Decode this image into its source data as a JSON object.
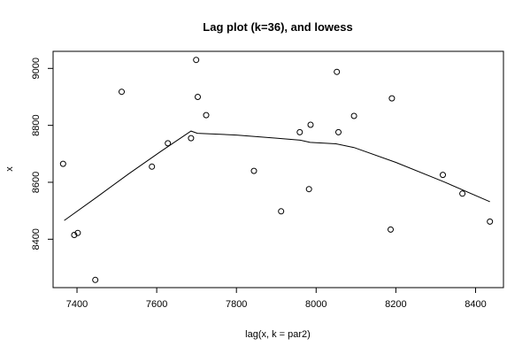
{
  "chart_data": {
    "type": "scatter",
    "title": "Lag plot (k=36), and lowess",
    "xlabel": "lag(x, k = par2)",
    "ylabel": "x",
    "xlim": [
      7340,
      8470
    ],
    "ylim": [
      8230,
      9060
    ],
    "x_ticks": [
      "7400",
      "7600",
      "7800",
      "8000",
      "8200",
      "8400"
    ],
    "y_ticks": [
      "8400",
      "8600",
      "8800",
      "9000"
    ],
    "grid": false,
    "points": [
      {
        "x": 7365,
        "y": 8665
      },
      {
        "x": 7393,
        "y": 8415
      },
      {
        "x": 7402,
        "y": 8422
      },
      {
        "x": 7446,
        "y": 8257
      },
      {
        "x": 7512,
        "y": 8918
      },
      {
        "x": 7588,
        "y": 8655
      },
      {
        "x": 7628,
        "y": 8737
      },
      {
        "x": 7686,
        "y": 8755
      },
      {
        "x": 7699,
        "y": 9030
      },
      {
        "x": 7703,
        "y": 8900
      },
      {
        "x": 7724,
        "y": 8836
      },
      {
        "x": 7844,
        "y": 8640
      },
      {
        "x": 7912,
        "y": 8498
      },
      {
        "x": 7959,
        "y": 8776
      },
      {
        "x": 7982,
        "y": 8576
      },
      {
        "x": 7986,
        "y": 8802
      },
      {
        "x": 8052,
        "y": 8988
      },
      {
        "x": 8056,
        "y": 8776
      },
      {
        "x": 8095,
        "y": 8833
      },
      {
        "x": 8187,
        "y": 8434
      },
      {
        "x": 8190,
        "y": 8895
      },
      {
        "x": 8318,
        "y": 8626
      },
      {
        "x": 8367,
        "y": 8560
      },
      {
        "x": 8436,
        "y": 8462
      }
    ],
    "lowess": [
      {
        "x": 7368,
        "y": 8466
      },
      {
        "x": 7450,
        "y": 8548
      },
      {
        "x": 7530,
        "y": 8630
      },
      {
        "x": 7610,
        "y": 8708
      },
      {
        "x": 7686,
        "y": 8780
      },
      {
        "x": 7702,
        "y": 8772
      },
      {
        "x": 7800,
        "y": 8766
      },
      {
        "x": 7900,
        "y": 8755
      },
      {
        "x": 7960,
        "y": 8748
      },
      {
        "x": 7985,
        "y": 8740
      },
      {
        "x": 8050,
        "y": 8735
      },
      {
        "x": 8095,
        "y": 8722
      },
      {
        "x": 8200,
        "y": 8670
      },
      {
        "x": 8320,
        "y": 8602
      },
      {
        "x": 8436,
        "y": 8532
      }
    ]
  }
}
